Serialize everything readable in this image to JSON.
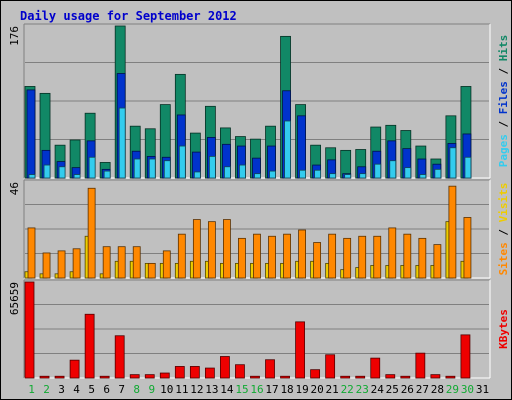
{
  "chart_data": {
    "type": "bar",
    "title": "Daily usage for September 2012",
    "categories": [
      "1",
      "2",
      "3",
      "4",
      "5",
      "6",
      "7",
      "8",
      "9",
      "10",
      "11",
      "12",
      "13",
      "14",
      "15",
      "16",
      "17",
      "18",
      "19",
      "20",
      "21",
      "22",
      "23",
      "24",
      "25",
      "26",
      "27",
      "28",
      "29",
      "30",
      "31"
    ],
    "weekend_days": [
      "1",
      "2",
      "8",
      "9",
      "15",
      "16",
      "22",
      "23",
      "29",
      "30"
    ],
    "panels": [
      {
        "name": "pages-files-hits",
        "ymax_label": "176",
        "ymax": 176,
        "legend": [
          {
            "text": "Hits",
            "color": "#118866"
          },
          {
            "text": "Files",
            "color": "#0033cc"
          },
          {
            "text": "Pages",
            "color": "#33ccee"
          }
        ],
        "series": [
          {
            "name": "Hits",
            "color": "#118866",
            "values": [
              106,
              98,
              38,
              44,
              75,
              18,
              176,
              60,
              57,
              85,
              120,
              52,
              83,
              58,
              48,
              45,
              60,
              164,
              85,
              38,
              35,
              32,
              33,
              59,
              61,
              55,
              37,
              22,
              72,
              106,
              0
            ]
          },
          {
            "name": "Files",
            "color": "#0033cc",
            "values": [
              102,
              32,
              19,
              12,
              43,
              10,
              121,
              31,
              25,
              24,
              73,
              30,
              47,
              39,
              37,
              23,
              37,
              101,
              72,
              15,
              21,
              5,
              13,
              31,
              43,
              34,
              22,
              16,
              40,
              51,
              0
            ]
          },
          {
            "name": "Pages",
            "color": "#33ccee",
            "values": [
              4,
              15,
              13,
              4,
              24,
              8,
              81,
              22,
              22,
              20,
              37,
              7,
              25,
              13,
              15,
              5,
              8,
              66,
              9,
              9,
              5,
              4,
              5,
              16,
              20,
              12,
              4,
              10,
              35,
              24,
              0
            ]
          }
        ]
      },
      {
        "name": "sites-visits",
        "ymax_label": "46",
        "ymax": 46,
        "legend": [
          {
            "text": "Visits",
            "color": "#eecc00"
          },
          {
            "text": "Sites",
            "color": "#ff8800"
          }
        ],
        "series": [
          {
            "name": "Visits",
            "color": "#eecc00",
            "values": [
              3,
              2,
              2,
              3,
              20,
              2,
              8,
              8,
              7,
              7,
              7,
              8,
              8,
              7,
              7,
              7,
              7,
              7,
              8,
              8,
              7,
              4,
              5,
              6,
              6,
              6,
              6,
              6,
              27,
              8,
              0
            ]
          },
          {
            "name": "Sites",
            "color": "#ff8800",
            "values": [
              24,
              12,
              13,
              14,
              43,
              15,
              15,
              15,
              7,
              13,
              21,
              28,
              27,
              28,
              19,
              21,
              20,
              21,
              23,
              17,
              21,
              19,
              20,
              20,
              24,
              21,
              19,
              16,
              44,
              29,
              0
            ]
          }
        ]
      },
      {
        "name": "kbytes",
        "ymax_label": "65659",
        "ymax": 65659,
        "legend": [
          {
            "text": "KBytes",
            "color": "#ee0000"
          }
        ],
        "series": [
          {
            "name": "KBytes",
            "color": "#ee0000",
            "values": [
              65659,
              1200,
              1200,
              12200,
              43600,
              1200,
              28900,
              2300,
              2300,
              3400,
              7900,
              7900,
              6800,
              14700,
              9100,
              1200,
              12500,
              1200,
              38400,
              5700,
              15900,
              1200,
              1200,
              13600,
              2300,
              1200,
              17000,
              2300,
              1200,
              29500,
              0
            ]
          }
        ]
      }
    ]
  }
}
